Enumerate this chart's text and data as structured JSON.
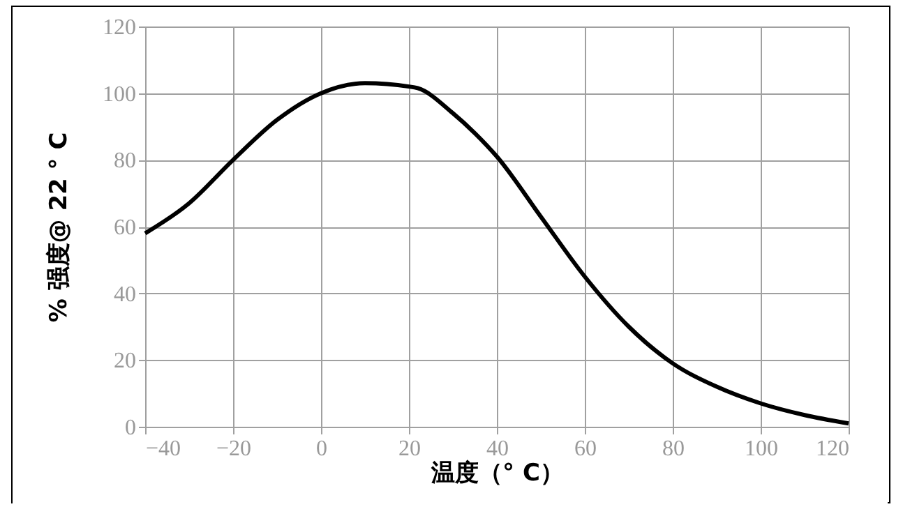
{
  "chart_data": {
    "type": "line",
    "xlabel": "温度（° C）",
    "ylabel": "% 强度@ 22 ° C",
    "x": [
      -40,
      -30,
      -20,
      -10,
      0,
      10,
      20,
      22,
      30,
      35,
      40,
      50,
      60,
      70,
      80,
      90,
      100,
      110,
      120
    ],
    "series": [
      {
        "color": "#000000",
        "values": [
          58,
          67,
          80,
          92,
          100,
          103,
          102,
          101.5,
          94,
          88,
          81,
          63,
          45,
          30,
          19,
          12,
          7,
          3.5,
          1
        ]
      }
    ],
    "xlim": [
      -40,
      120
    ],
    "xticks": [
      -40,
      -20,
      0,
      20,
      40,
      60,
      80,
      100,
      120
    ],
    "ylim": [
      0,
      120
    ],
    "yticks": [
      0,
      20,
      40,
      60,
      80,
      100,
      120
    ],
    "grid": true,
    "marker": "none",
    "line_style": "solid"
  }
}
